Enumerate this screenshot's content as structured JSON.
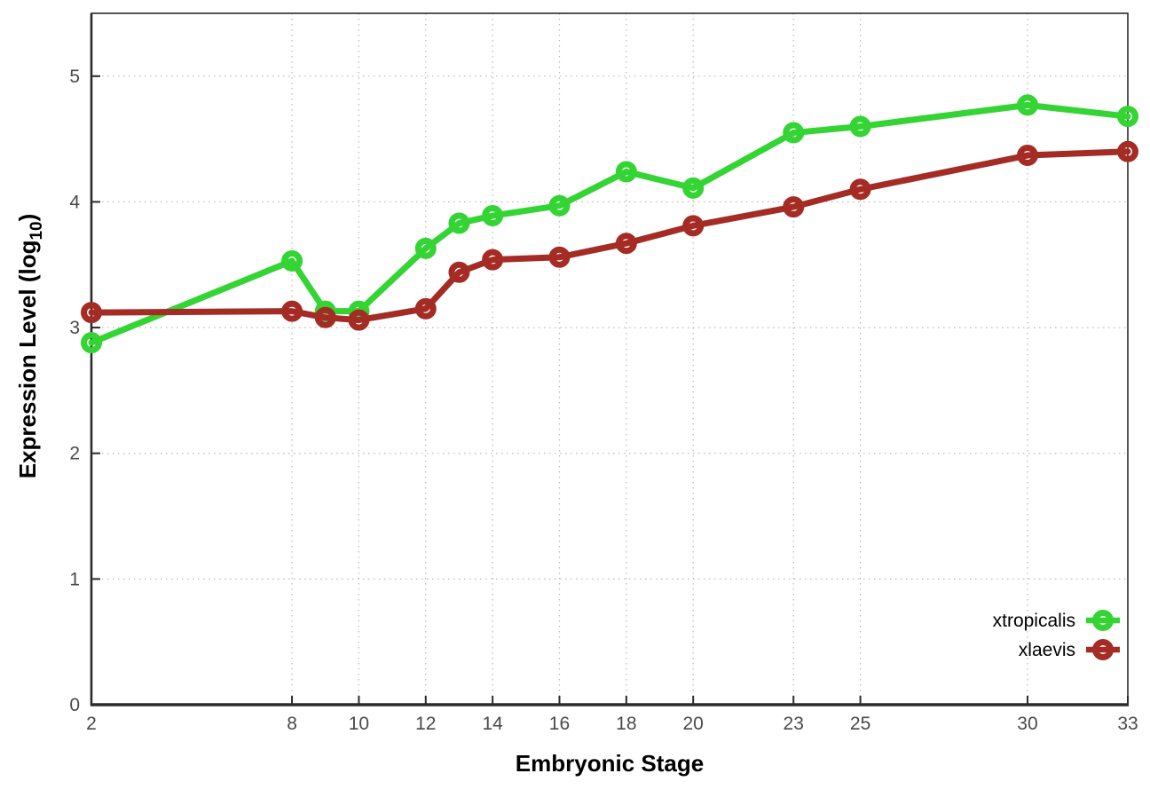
{
  "figure": {
    "background": "#ffffff",
    "border_color": "#2b2b2b",
    "grid_color": "#b9b9b9",
    "tick_label_color": "#4a4a4a"
  },
  "chart_data": {
    "type": "line",
    "title": "",
    "xlabel": "Embryonic Stage",
    "ylabel": "Expression Level (log10)",
    "ylabel_parts": {
      "main": "Expression Level (log",
      "sub": "10",
      "end": ")"
    },
    "x": [
      2,
      8,
      9,
      10,
      12,
      13,
      14,
      16,
      18,
      20,
      23,
      25,
      30,
      33
    ],
    "x_tick_labels": [
      2,
      8,
      10,
      12,
      14,
      16,
      18,
      20,
      23,
      25,
      30,
      33
    ],
    "y_tick_labels": [
      0,
      1,
      2,
      3,
      4,
      5
    ],
    "xlim": [
      2,
      33
    ],
    "ylim": [
      0,
      5.5
    ],
    "grid": "dotted",
    "legend_position": "inside-bottom-right",
    "series": [
      {
        "name": "xtropicalis",
        "color": "#33d433",
        "marker": "open-circle",
        "values": [
          2.88,
          3.53,
          3.13,
          3.13,
          3.63,
          3.83,
          3.89,
          3.97,
          4.24,
          4.11,
          4.55,
          4.6,
          4.77,
          4.68
        ]
      },
      {
        "name": "xlaevis",
        "color": "#a42c24",
        "marker": "open-circle",
        "values": [
          3.12,
          3.13,
          3.08,
          3.06,
          3.15,
          3.44,
          3.54,
          3.56,
          3.67,
          3.81,
          3.96,
          4.1,
          4.37,
          4.4
        ]
      }
    ]
  }
}
